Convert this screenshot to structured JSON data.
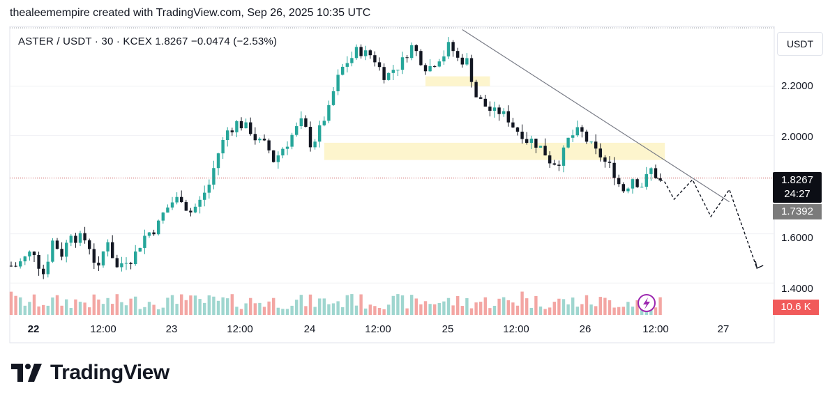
{
  "header": {
    "text": "thealeemempire created with TradingView.com, Sep 26, 2025 10:35 UTC"
  },
  "symbol": {
    "info": "ASTER / USDT · 30 · KCEX  1.8267  −0.0474 (−2.53%)"
  },
  "axis": {
    "unit": "USDT",
    "y_ticks": [
      "2.2000",
      "2.0000",
      "1.6000",
      "1.4000"
    ]
  },
  "badges": {
    "last_price": "1.8267",
    "countdown": "24:27",
    "level": "1.7392",
    "volume": "10.6 K"
  },
  "footer": {
    "brand": "TradingView"
  },
  "colors": {
    "up": "#26a69a",
    "down": "#131722",
    "vol_up": "#9fd6cf",
    "vol_down": "#f3a6a3",
    "zone": "#fdf3c4"
  },
  "chart_data": {
    "type": "candlestick",
    "title": "ASTER / USDT · 30 · KCEX",
    "x_ticks": [
      "22",
      "12:00",
      "23",
      "12:00",
      "24",
      "12:00",
      "25",
      "12:00",
      "26",
      "12:00",
      "27"
    ],
    "ylim": [
      1.36,
      2.45
    ],
    "last_price": 1.8267,
    "level": 1.7392,
    "close_path": [
      1.47,
      1.5,
      1.53,
      1.44,
      1.57,
      1.52,
      1.61,
      1.58,
      1.55,
      1.45,
      1.58,
      1.46,
      1.5,
      1.52,
      1.59,
      1.62,
      1.68,
      1.73,
      1.75,
      1.69,
      1.73,
      1.8,
      1.93,
      2.02,
      2.05,
      2.03,
      1.99,
      1.96,
      1.9,
      1.95,
      2.0,
      2.05,
      1.97,
      2.02,
      2.1,
      2.23,
      2.3,
      2.34,
      2.33,
      2.31,
      2.25,
      2.27,
      2.3,
      2.36,
      2.31,
      2.28,
      2.32,
      2.36,
      2.31,
      2.3,
      2.16,
      2.12,
      2.09,
      2.08,
      2.04,
      2.01,
      1.98,
      1.95,
      1.9,
      1.9,
      1.98,
      2.01,
      1.98,
      1.93,
      1.89,
      1.85,
      1.78,
      1.83,
      1.8,
      1.86,
      1.81
    ],
    "volume_range": "low",
    "zones": [
      {
        "from_index": 45,
        "to_index": 52,
        "low": 2.2,
        "high": 2.24
      },
      {
        "from_index": 34,
        "to_index": 71,
        "low": 1.9,
        "high": 1.97
      }
    ],
    "trendline": [
      {
        "index": 49,
        "value": 2.43
      },
      {
        "index": 78,
        "value": 1.73
      }
    ],
    "projection": [
      {
        "index": 70,
        "value": 1.83
      },
      {
        "index": 71,
        "value": 1.81
      },
      {
        "index": 72,
        "value": 1.74
      },
      {
        "index": 74,
        "value": 1.82
      },
      {
        "index": 76,
        "value": 1.67
      },
      {
        "index": 78,
        "value": 1.78
      },
      {
        "index": 81,
        "value": 1.46
      }
    ]
  }
}
